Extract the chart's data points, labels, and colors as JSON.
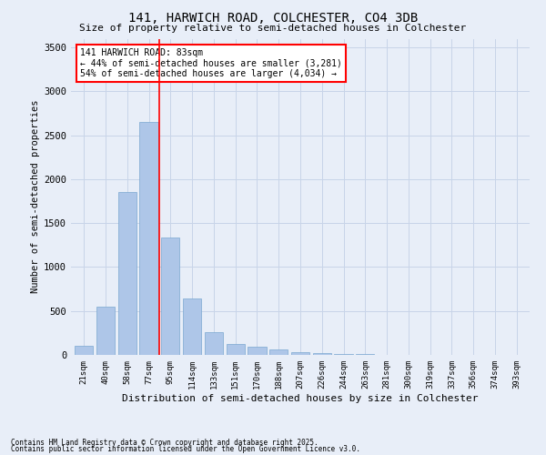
{
  "title1": "141, HARWICH ROAD, COLCHESTER, CO4 3DB",
  "title2": "Size of property relative to semi-detached houses in Colchester",
  "xlabel": "Distribution of semi-detached houses by size in Colchester",
  "ylabel": "Number of semi-detached properties",
  "categories": [
    "21sqm",
    "40sqm",
    "58sqm",
    "77sqm",
    "95sqm",
    "114sqm",
    "133sqm",
    "151sqm",
    "170sqm",
    "188sqm",
    "207sqm",
    "226sqm",
    "244sqm",
    "263sqm",
    "281sqm",
    "300sqm",
    "319sqm",
    "337sqm",
    "356sqm",
    "374sqm",
    "393sqm"
  ],
  "values": [
    100,
    545,
    1850,
    2650,
    1340,
    645,
    255,
    125,
    90,
    60,
    30,
    16,
    10,
    6,
    3,
    2,
    1,
    1,
    0,
    0,
    0
  ],
  "bar_color": "#aec6e8",
  "bar_edge_color": "#7aa8d0",
  "grid_color": "#c8d4e8",
  "bg_color": "#e8eef8",
  "red_line_label": "141 HARWICH ROAD: 83sqm",
  "annotation_line1": "← 44% of semi-detached houses are smaller (3,281)",
  "annotation_line2": "54% of semi-detached houses are larger (4,034) →",
  "annotation_box_color": "white",
  "annotation_edge_color": "red",
  "footnote1": "Contains HM Land Registry data © Crown copyright and database right 2025.",
  "footnote2": "Contains public sector information licensed under the Open Government Licence v3.0.",
  "ylim": [
    0,
    3600
  ],
  "yticks": [
    0,
    500,
    1000,
    1500,
    2000,
    2500,
    3000,
    3500
  ]
}
